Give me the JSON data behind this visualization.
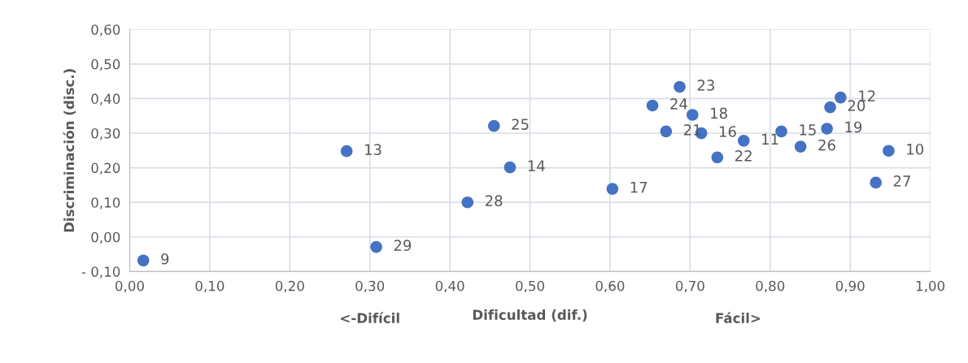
{
  "chart_data": {
    "type": "scatter",
    "xlabel": "Dificultad (dif.)",
    "ylabel": "Discriminación (disc.)",
    "x": [
      0.017,
      0.271,
      0.308,
      0.422,
      0.455,
      0.475,
      0.603,
      0.653,
      0.687,
      0.67,
      0.703,
      0.714,
      0.734,
      0.767,
      0.814,
      0.838,
      0.871,
      0.875,
      0.888,
      0.948,
      0.932
    ],
    "series": [
      {
        "color": "#4472c4",
        "values": [
          -0.068,
          0.248,
          -0.029,
          0.1,
          0.321,
          0.201,
          0.139,
          0.38,
          0.434,
          0.305,
          0.353,
          0.3,
          0.23,
          0.278,
          0.305,
          0.261,
          0.313,
          0.375,
          0.403,
          0.249,
          0.157
        ]
      }
    ],
    "marker": "circle",
    "grid": true,
    "legend": false,
    "xlim": [
      0,
      1
    ],
    "ylim": [
      -0.1,
      0.6
    ],
    "xticks": [
      {
        "value": 0,
        "label": "0,00"
      },
      {
        "value": 0.1,
        "label": "0,10"
      },
      {
        "value": 0.2,
        "label": "0,20"
      },
      {
        "value": 0.3,
        "label": "0,30"
      },
      {
        "value": 0.4,
        "label": "0,40"
      },
      {
        "value": 0.5,
        "label": "0,50"
      },
      {
        "value": 0.6,
        "label": "0,60"
      },
      {
        "value": 0.7,
        "label": "0,70"
      },
      {
        "value": 0.8,
        "label": "0,80"
      },
      {
        "value": 0.9,
        "label": "0,90"
      },
      {
        "value": 1.0,
        "label": "1,00"
      }
    ],
    "yticks": [
      {
        "value": -0.1,
        "label": "- 0,10"
      },
      {
        "value": 0,
        "label": "0,00"
      },
      {
        "value": 0.1,
        "label": "0,10"
      },
      {
        "value": 0.2,
        "label": "0,20"
      },
      {
        "value": 0.3,
        "label": "0,30"
      },
      {
        "value": 0.4,
        "label": "0,40"
      },
      {
        "value": 0.5,
        "label": "0,50"
      },
      {
        "value": 0.6,
        "label": "0,60"
      }
    ],
    "annotations": [
      {
        "text": "9",
        "x": 0.017,
        "y": -0.068
      },
      {
        "text": "13",
        "x": 0.271,
        "y": 0.248
      },
      {
        "text": "29",
        "x": 0.308,
        "y": -0.029
      },
      {
        "text": "28",
        "x": 0.422,
        "y": 0.1
      },
      {
        "text": "25",
        "x": 0.455,
        "y": 0.321
      },
      {
        "text": "14",
        "x": 0.475,
        "y": 0.201
      },
      {
        "text": "17",
        "x": 0.603,
        "y": 0.139
      },
      {
        "text": "24",
        "x": 0.653,
        "y": 0.38
      },
      {
        "text": "23",
        "x": 0.687,
        "y": 0.434
      },
      {
        "text": "21",
        "x": 0.67,
        "y": 0.305
      },
      {
        "text": "18",
        "x": 0.703,
        "y": 0.353
      },
      {
        "text": "16",
        "x": 0.714,
        "y": 0.3
      },
      {
        "text": "22",
        "x": 0.734,
        "y": 0.23
      },
      {
        "text": "11",
        "x": 0.767,
        "y": 0.278
      },
      {
        "text": "15",
        "x": 0.814,
        "y": 0.305
      },
      {
        "text": "26",
        "x": 0.838,
        "y": 0.261
      },
      {
        "text": "19",
        "x": 0.871,
        "y": 0.313
      },
      {
        "text": "20",
        "x": 0.875,
        "y": 0.375
      },
      {
        "text": "12",
        "x": 0.888,
        "y": 0.403
      },
      {
        "text": "10",
        "x": 0.948,
        "y": 0.249
      },
      {
        "text": "27",
        "x": 0.932,
        "y": 0.157
      },
      "<-Difícil",
      "Fácil>"
    ]
  }
}
